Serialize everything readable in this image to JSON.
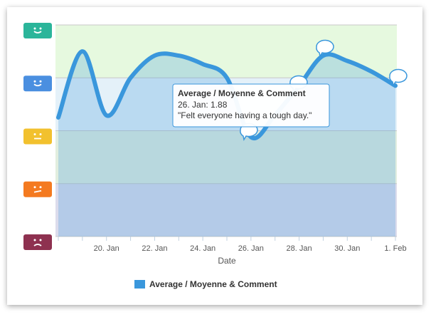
{
  "chart_data": {
    "type": "line",
    "categories": [
      null,
      null,
      "20. Jan",
      null,
      "22. Jan",
      null,
      "24. Jan",
      null,
      "26. Jan",
      null,
      "28. Jan",
      null,
      "30. Jan",
      null,
      "1. Feb"
    ],
    "series": [
      {
        "name": "Average / Moyenne & Comment",
        "color": "#3a97dc",
        "values": [
          2.25,
          3.5,
          2.29,
          3.0,
          3.42,
          3.42,
          3.26,
          3.0,
          1.88,
          2.3,
          2.85,
          3.42,
          3.32,
          3.12,
          2.85
        ]
      }
    ],
    "ylim": [
      0,
      4
    ],
    "yticks": [
      0,
      1,
      2,
      3,
      4
    ],
    "xlabel": "Date",
    "tooltip": {
      "title": "Average / Moyenne & Comment",
      "label": "26. Jan: 1.88",
      "comment": "\"Felt everyone having a tough day.\""
    }
  }
}
